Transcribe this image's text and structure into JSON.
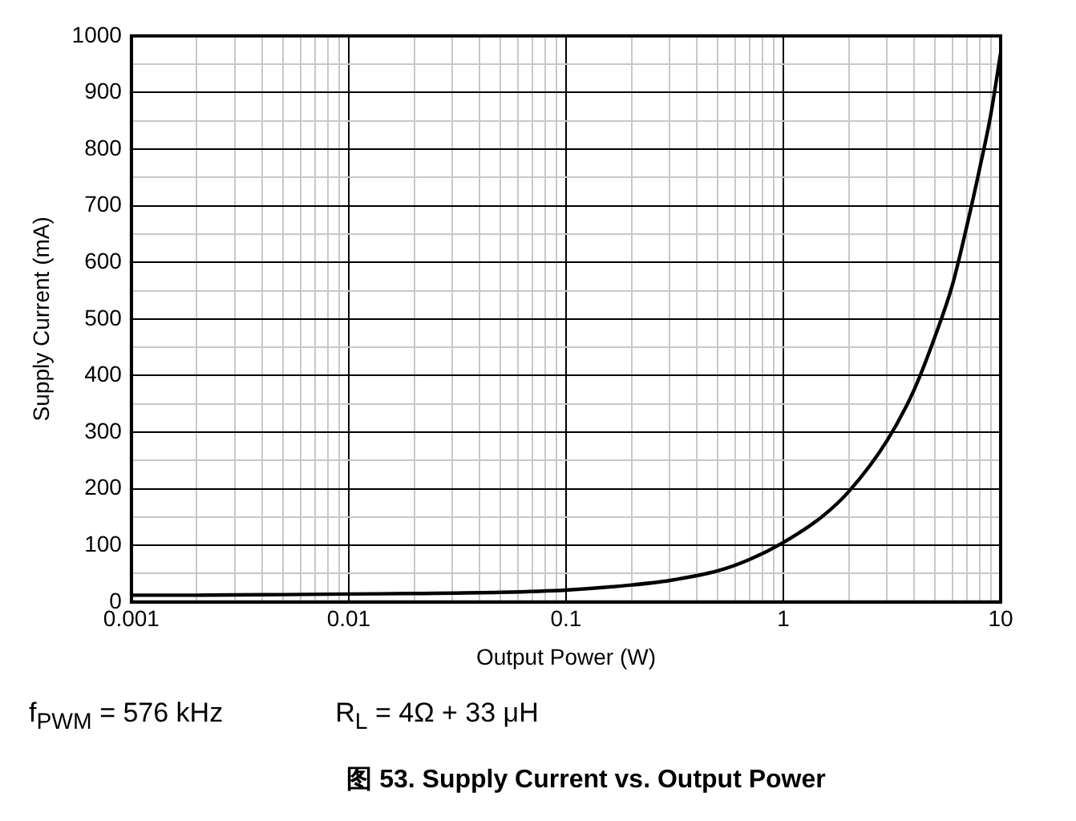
{
  "chart_data": {
    "type": "line",
    "title": "图 53. Supply Current vs. Output Power",
    "xlabel": "Output Power (W)",
    "ylabel": "Supply Current (mA)",
    "annotations": [
      "f$_{PWM}$ = 576 kHz",
      "R$_{L}$ = 4Ω + 33 μH"
    ],
    "log": "x",
    "grid": true,
    "legend": false,
    "marker": "none",
    "line_style": "solid",
    "xlim": [
      0.001,
      10
    ],
    "ylim": [
      0,
      1000
    ],
    "xticks": [
      0.001,
      {
        "value": 0.002,
        "label": null
      },
      {
        "value": 0.003,
        "label": null
      },
      {
        "value": 0.004,
        "label": null
      },
      {
        "value": 0.005,
        "label": null
      },
      {
        "value": 0.006,
        "label": null
      },
      {
        "value": 0.007,
        "label": null
      },
      {
        "value": 0.008,
        "label": null
      },
      {
        "value": 0.009,
        "label": null
      },
      0.01,
      {
        "value": 0.02,
        "label": null
      },
      {
        "value": 0.03,
        "label": null
      },
      {
        "value": 0.04,
        "label": null
      },
      {
        "value": 0.05,
        "label": null
      },
      {
        "value": 0.06,
        "label": null
      },
      {
        "value": 0.07,
        "label": null
      },
      {
        "value": 0.08,
        "label": null
      },
      {
        "value": 0.09,
        "label": null
      },
      0.1,
      {
        "value": 0.2,
        "label": null
      },
      {
        "value": 0.3,
        "label": null
      },
      {
        "value": 0.4,
        "label": null
      },
      {
        "value": 0.5,
        "label": null
      },
      {
        "value": 0.6,
        "label": null
      },
      {
        "value": 0.7,
        "label": null
      },
      {
        "value": 0.8,
        "label": null
      },
      {
        "value": 0.9,
        "label": null
      },
      1,
      {
        "value": 2,
        "label": null
      },
      {
        "value": 3,
        "label": null
      },
      {
        "value": 4,
        "label": null
      },
      {
        "value": 5,
        "label": null
      },
      {
        "value": 6,
        "label": null
      },
      {
        "value": 7,
        "label": null
      },
      {
        "value": 8,
        "label": null
      },
      {
        "value": 9,
        "label": null
      },
      10
    ],
    "yticks": [
      0,
      {
        "value": 50,
        "label": null
      },
      100,
      {
        "value": 150,
        "label": null
      },
      200,
      {
        "value": 250,
        "label": null
      },
      300,
      {
        "value": 350,
        "label": null
      },
      400,
      {
        "value": 450,
        "label": null
      },
      500,
      {
        "value": 550,
        "label": null
      },
      600,
      {
        "value": 650,
        "label": null
      },
      700,
      {
        "value": 750,
        "label": null
      },
      800,
      {
        "value": 850,
        "label": null
      },
      900,
      {
        "value": 950,
        "label": null
      },
      1000
    ],
    "series": [
      {
        "color": "#000000",
        "x": [
          0.001,
          0.002,
          0.005,
          0.01,
          0.02,
          0.05,
          0.1,
          0.2,
          0.3,
          0.5,
          0.7,
          1,
          1.5,
          2,
          3,
          4,
          5,
          6,
          7,
          8,
          9,
          10
        ],
        "values": [
          12,
          12,
          13,
          14,
          15,
          17,
          21,
          30,
          38,
          55,
          75,
          105,
          150,
          195,
          285,
          375,
          470,
          560,
          665,
          765,
          860,
          970
        ]
      }
    ]
  }
}
